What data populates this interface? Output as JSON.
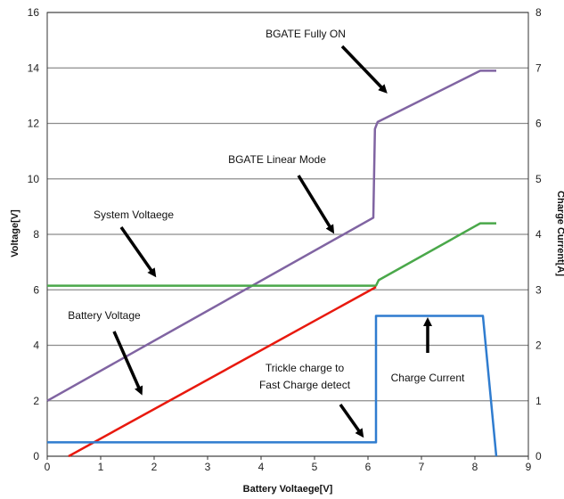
{
  "chart_data": {
    "type": "line",
    "title": "",
    "xlabel": "Battery Voltaege[V]",
    "ylabel": "Voltage[V]",
    "y2label": "Charge Current[A]",
    "xlim": [
      0,
      9
    ],
    "ylim": [
      0,
      16
    ],
    "y2lim": [
      0,
      8
    ],
    "x_ticks": [
      "0",
      "1",
      "2",
      "3",
      "4",
      "5",
      "6",
      "7",
      "8",
      "9"
    ],
    "y_ticks": [
      "0",
      "2",
      "4",
      "6",
      "8",
      "10",
      "12",
      "14",
      "16"
    ],
    "y2_ticks": [
      "0",
      "1",
      "2",
      "3",
      "4",
      "5",
      "6",
      "7",
      "8"
    ],
    "grid": "horizontal",
    "legend": "none",
    "series": [
      {
        "color": "#8064a2",
        "axis": "left",
        "points": [
          [
            0,
            2.0
          ],
          [
            6.1,
            8.6
          ],
          [
            6.13,
            11.8
          ],
          [
            6.18,
            12.05
          ],
          [
            8.1,
            13.9
          ],
          [
            8.4,
            13.9
          ]
        ]
      },
      {
        "color": "#4aa84a",
        "axis": "left",
        "points": [
          [
            0,
            6.15
          ],
          [
            6.15,
            6.15
          ],
          [
            6.2,
            6.35
          ],
          [
            8.1,
            8.4
          ],
          [
            8.4,
            8.4
          ]
        ]
      },
      {
        "color": "#e8190e",
        "axis": "left",
        "points": [
          [
            0.4,
            0
          ],
          [
            6.15,
            6.1
          ]
        ]
      },
      {
        "color": "#2f7ccf",
        "axis": "right",
        "points": [
          [
            0,
            0.25
          ],
          [
            6.15,
            0.25
          ],
          [
            6.15,
            2.53
          ],
          [
            8.15,
            2.53
          ],
          [
            8.4,
            0
          ]
        ]
      }
    ],
    "annotations": [
      {
        "text": "BGATE Fully ON",
        "x": 6.3,
        "y": 12.8
      },
      {
        "text": "BGATE Linear Mode",
        "x": 5.5,
        "y": 7.9
      },
      {
        "text": "System Voltaege",
        "x": 2.1,
        "y": 6.3
      },
      {
        "text": "Battery Voltage",
        "x": 1.8,
        "y": 2.2
      },
      {
        "text": "Trickle charge to Fast Charge detect",
        "x": 6.05,
        "y": 0.8
      },
      {
        "text": "Charge Current",
        "x": 7.2,
        "y": 4.7
      }
    ],
    "annotation_lines": {
      "bgate_full": "BGATE Fully ON",
      "bgate_linear": "BGATE Linear Mode",
      "system": "System Voltaege",
      "battery": "Battery Voltage",
      "trickle_1": "Trickle charge to",
      "trickle_2": "Fast Charge detect",
      "current": "Charge Current"
    }
  }
}
